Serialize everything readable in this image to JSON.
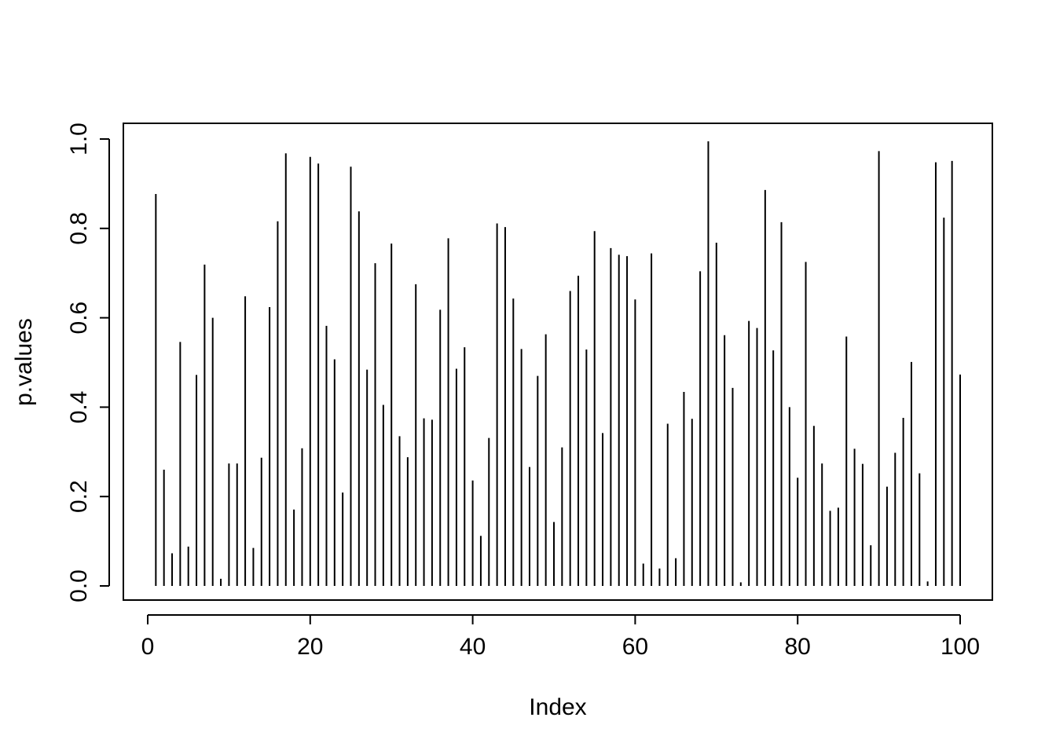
{
  "chart_data": {
    "type": "bar",
    "style": "histogram-lines",
    "title": "",
    "xlabel": "Index",
    "ylabel": "p.values",
    "xlim": [
      0,
      100
    ],
    "ylim": [
      0.0,
      1.0
    ],
    "x_ticks": [
      0,
      20,
      40,
      60,
      80,
      100
    ],
    "x_tick_labels": [
      "0",
      "20",
      "40",
      "60",
      "80",
      "100"
    ],
    "y_ticks": [
      0.0,
      0.2,
      0.4,
      0.6,
      0.8,
      1.0
    ],
    "y_tick_labels": [
      "0.0",
      "0.2",
      "0.4",
      "0.6",
      "0.8",
      "1.0"
    ],
    "grid": false,
    "legend": "none",
    "line_color": "#000000",
    "x": [
      1,
      2,
      3,
      4,
      5,
      6,
      7,
      8,
      9,
      10,
      11,
      12,
      13,
      14,
      15,
      16,
      17,
      18,
      19,
      20,
      21,
      22,
      23,
      24,
      25,
      26,
      27,
      28,
      29,
      30,
      31,
      32,
      33,
      34,
      35,
      36,
      37,
      38,
      39,
      40,
      41,
      42,
      43,
      44,
      45,
      46,
      47,
      48,
      49,
      50,
      51,
      52,
      53,
      54,
      55,
      56,
      57,
      58,
      59,
      60,
      61,
      62,
      63,
      64,
      65,
      66,
      67,
      68,
      69,
      70,
      71,
      72,
      73,
      74,
      75,
      76,
      77,
      78,
      79,
      80,
      81,
      82,
      83,
      84,
      85,
      86,
      87,
      88,
      89,
      90,
      91,
      92,
      93,
      94,
      95,
      96,
      97,
      98,
      99,
      100
    ],
    "values": [
      0.877,
      0.26,
      0.073,
      0.546,
      0.088,
      0.472,
      0.719,
      0.6,
      0.016,
      0.274,
      0.274,
      0.648,
      0.085,
      0.287,
      0.624,
      0.816,
      0.968,
      0.171,
      0.308,
      0.96,
      0.945,
      0.582,
      0.507,
      0.209,
      0.938,
      0.838,
      0.484,
      0.722,
      0.405,
      0.766,
      0.335,
      0.288,
      0.675,
      0.375,
      0.372,
      0.618,
      0.778,
      0.486,
      0.534,
      0.236,
      0.112,
      0.331,
      0.811,
      0.803,
      0.643,
      0.53,
      0.266,
      0.47,
      0.563,
      0.143,
      0.31,
      0.66,
      0.694,
      0.529,
      0.794,
      0.342,
      0.756,
      0.741,
      0.738,
      0.641,
      0.05,
      0.744,
      0.039,
      0.363,
      0.062,
      0.434,
      0.374,
      0.704,
      0.995,
      0.768,
      0.561,
      0.443,
      0.008,
      0.593,
      0.577,
      0.886,
      0.527,
      0.814,
      0.4,
      0.242,
      0.725,
      0.358,
      0.274,
      0.168,
      0.175,
      0.558,
      0.307,
      0.273,
      0.091,
      0.973,
      0.222,
      0.298,
      0.376,
      0.501,
      0.252,
      0.01,
      0.948,
      0.824,
      0.951,
      0.473
    ]
  }
}
